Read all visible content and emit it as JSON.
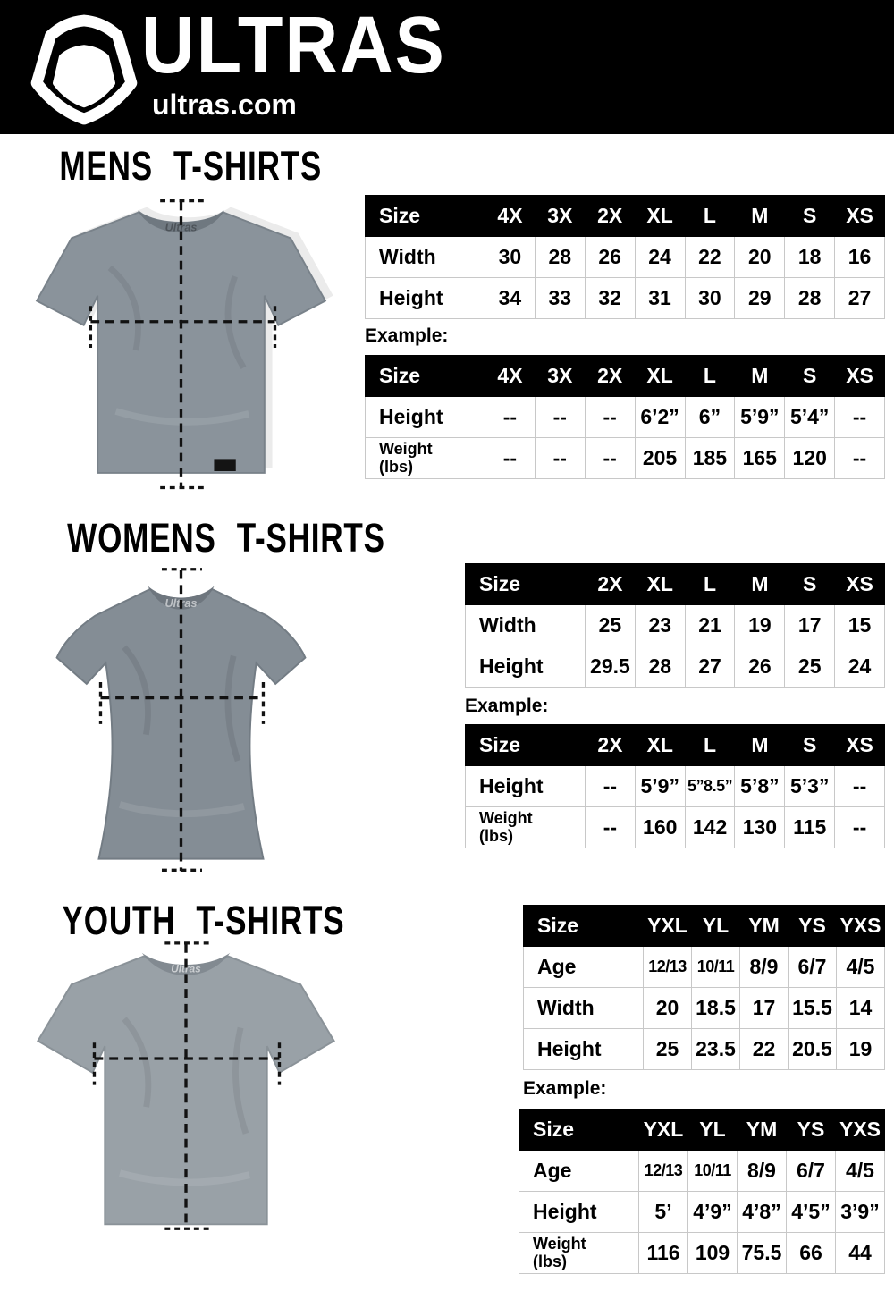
{
  "brand": {
    "name": "ULTRAS",
    "domain": "ultras.com",
    "logo_icon": "pentagon-badge-icon",
    "collar_label": "Ultras"
  },
  "colors": {
    "page_bg": "#ffffff",
    "header_bg": "#000000",
    "text": "#000000",
    "table_header_bg": "#000000",
    "table_header_text": "#ffffff",
    "table_border": "#c8c8c8",
    "shirt_mens": "#8a939b",
    "shirt_womens": "#848d95",
    "shirt_youth": "#99a1a7",
    "dash_line": "#121212"
  },
  "sections": [
    {
      "id": "mens",
      "title": "MENS T-SHIRTS",
      "example_label": "Example:",
      "shirt_icon": "mens-tshirt-image",
      "size_table": {
        "columns": [
          "Size",
          "4X",
          "3X",
          "2X",
          "XL",
          "L",
          "M",
          "S",
          "XS"
        ],
        "rows": [
          {
            "label": "Width",
            "values": [
              "30",
              "28",
              "26",
              "24",
              "22",
              "20",
              "18",
              "16"
            ]
          },
          {
            "label": "Height",
            "values": [
              "34",
              "33",
              "32",
              "31",
              "30",
              "29",
              "28",
              "27"
            ]
          }
        ]
      },
      "example_table": {
        "columns": [
          "Size",
          "4X",
          "3X",
          "2X",
          "XL",
          "L",
          "M",
          "S",
          "XS"
        ],
        "rows": [
          {
            "label": "Height",
            "values": [
              "--",
              "--",
              "--",
              "6’2”",
              "6”",
              "5’9”",
              "5’4”",
              "--"
            ]
          },
          {
            "label": "Weight (lbs)",
            "values": [
              "--",
              "--",
              "--",
              "205",
              "185",
              "165",
              "120",
              "--"
            ]
          }
        ]
      }
    },
    {
      "id": "womens",
      "title": "WOMENS T-SHIRTS",
      "example_label": "Example:",
      "shirt_icon": "womens-tshirt-image",
      "size_table": {
        "columns": [
          "Size",
          "2X",
          "XL",
          "L",
          "M",
          "S",
          "XS"
        ],
        "rows": [
          {
            "label": "Width",
            "values": [
              "25",
              "23",
              "21",
              "19",
              "17",
              "15"
            ]
          },
          {
            "label": "Height",
            "values": [
              "29.5",
              "28",
              "27",
              "26",
              "25",
              "24"
            ]
          }
        ]
      },
      "example_table": {
        "columns": [
          "Size",
          "2X",
          "XL",
          "L",
          "M",
          "S",
          "XS"
        ],
        "rows": [
          {
            "label": "Height",
            "values": [
              "--",
              "5’9”",
              "5”8.5”",
              "5’8”",
              "5’3”",
              "--"
            ]
          },
          {
            "label": "Weight (lbs)",
            "values": [
              "--",
              "160",
              "142",
              "130",
              "115",
              "--"
            ]
          }
        ]
      }
    },
    {
      "id": "youth",
      "title": "YOUTH T-SHIRTS",
      "example_label": "Example:",
      "shirt_icon": "youth-tshirt-image",
      "size_table": {
        "columns": [
          "Size",
          "YXL",
          "YL",
          "YM",
          "YS",
          "YXS"
        ],
        "rows": [
          {
            "label": "Age",
            "values": [
              "12/13",
              "10/11",
              "8/9",
              "6/7",
              "4/5"
            ]
          },
          {
            "label": "Width",
            "values": [
              "20",
              "18.5",
              "17",
              "15.5",
              "14"
            ]
          },
          {
            "label": "Height",
            "values": [
              "25",
              "23.5",
              "22",
              "20.5",
              "19"
            ]
          }
        ]
      },
      "example_table": {
        "columns": [
          "Size",
          "YXL",
          "YL",
          "YM",
          "YS",
          "YXS"
        ],
        "rows": [
          {
            "label": "Age",
            "values": [
              "12/13",
              "10/11",
              "8/9",
              "6/7",
              "4/5"
            ]
          },
          {
            "label": "Height",
            "values": [
              "5’",
              "4’9”",
              "4’8”",
              "4’5”",
              "3’9”"
            ]
          },
          {
            "label": "Weight (lbs)",
            "values": [
              "116",
              "109",
              "75.5",
              "66",
              "44"
            ]
          }
        ]
      }
    }
  ]
}
